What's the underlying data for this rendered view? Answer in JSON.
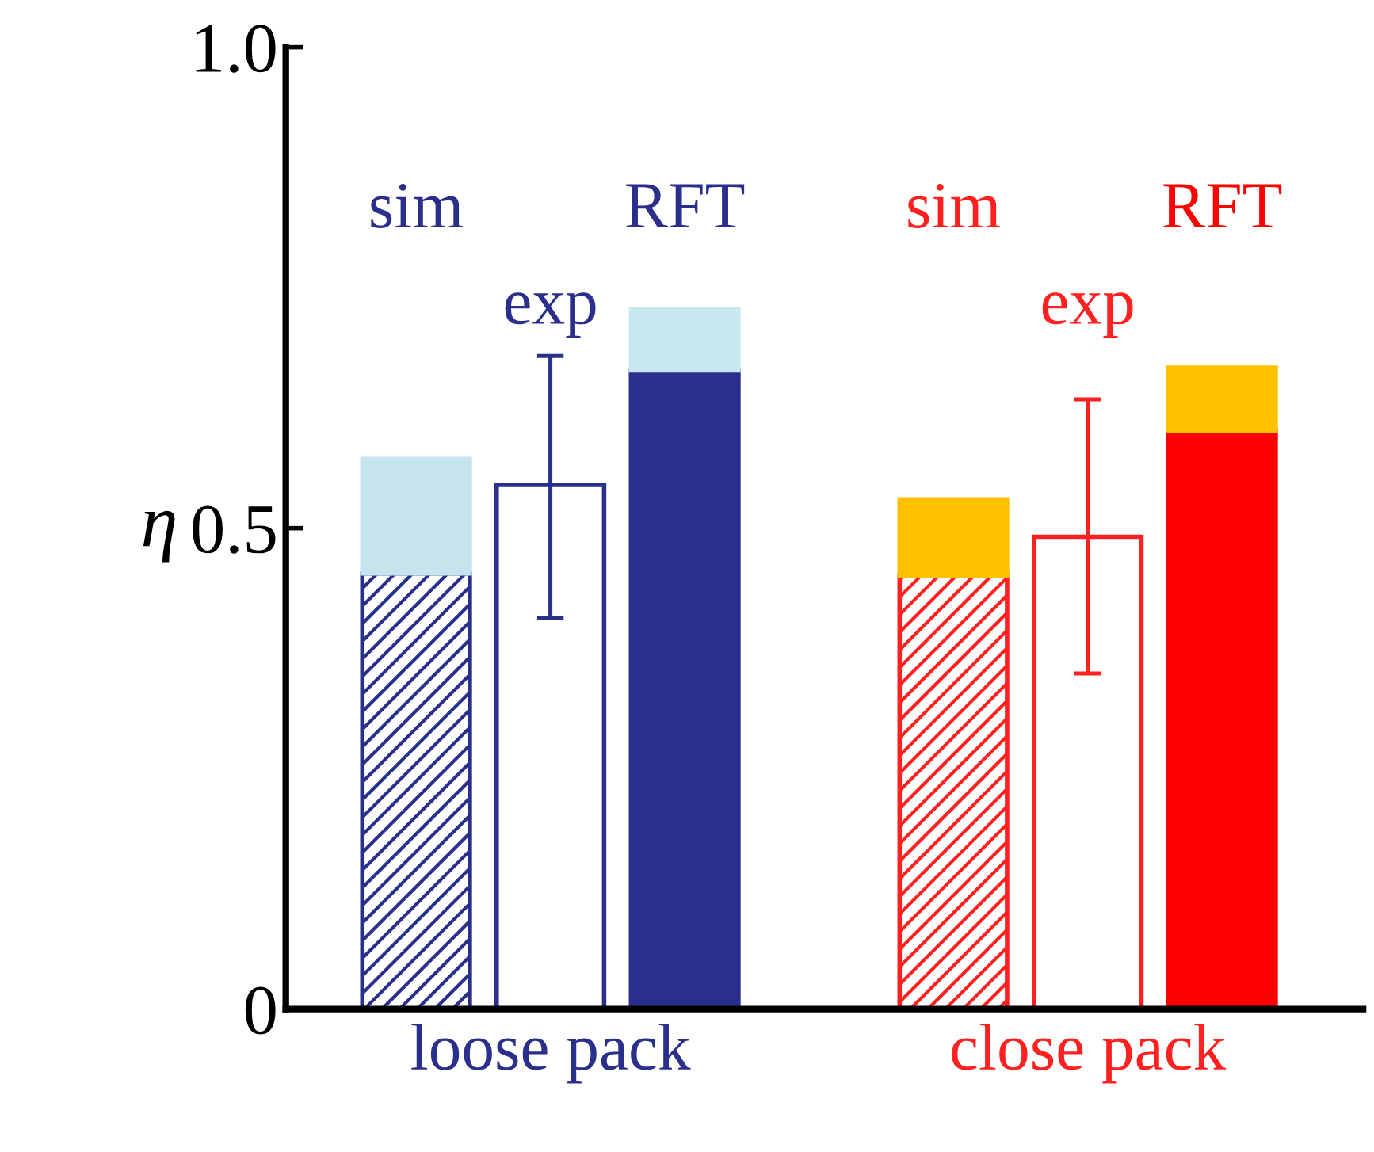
{
  "chart_data": {
    "type": "bar",
    "stacked": true,
    "categories": [
      "sim",
      "exp",
      "RFT",
      null,
      "sim",
      "exp",
      "RFT"
    ],
    "series": [
      {
        "colors": [
          "#2b2f8c",
          "#2b2f8c",
          "#2b2f8c",
          null,
          "#ff2020",
          "#ff2020",
          "#ff0000"
        ],
        "values": [
          0.453,
          0.545,
          0.664,
          null,
          0.451,
          0.491,
          0.601
        ],
        "errors": [
          null,
          [
            0.407,
            0.679
          ],
          null,
          null,
          null,
          [
            0.349,
            0.634
          ],
          null
        ]
      },
      {
        "colors": [
          "#c6e4ee",
          null,
          "#c8e8f0",
          null,
          "#ffc000",
          null,
          "#ffc000"
        ],
        "values": [
          0.119,
          null,
          0.064,
          null,
          0.079,
          null,
          0.066
        ]
      }
    ],
    "ylabel": "η",
    "ylim": [
      0,
      1.0
    ],
    "yticks": [
      0,
      {
        "value": 0.5,
        "label": "0.5"
      },
      {
        "value": 1.0,
        "label": "1.0"
      }
    ],
    "annotations": [
      "loose pack",
      "close pack"
    ],
    "tick_labels": "y",
    "grid": false
  }
}
